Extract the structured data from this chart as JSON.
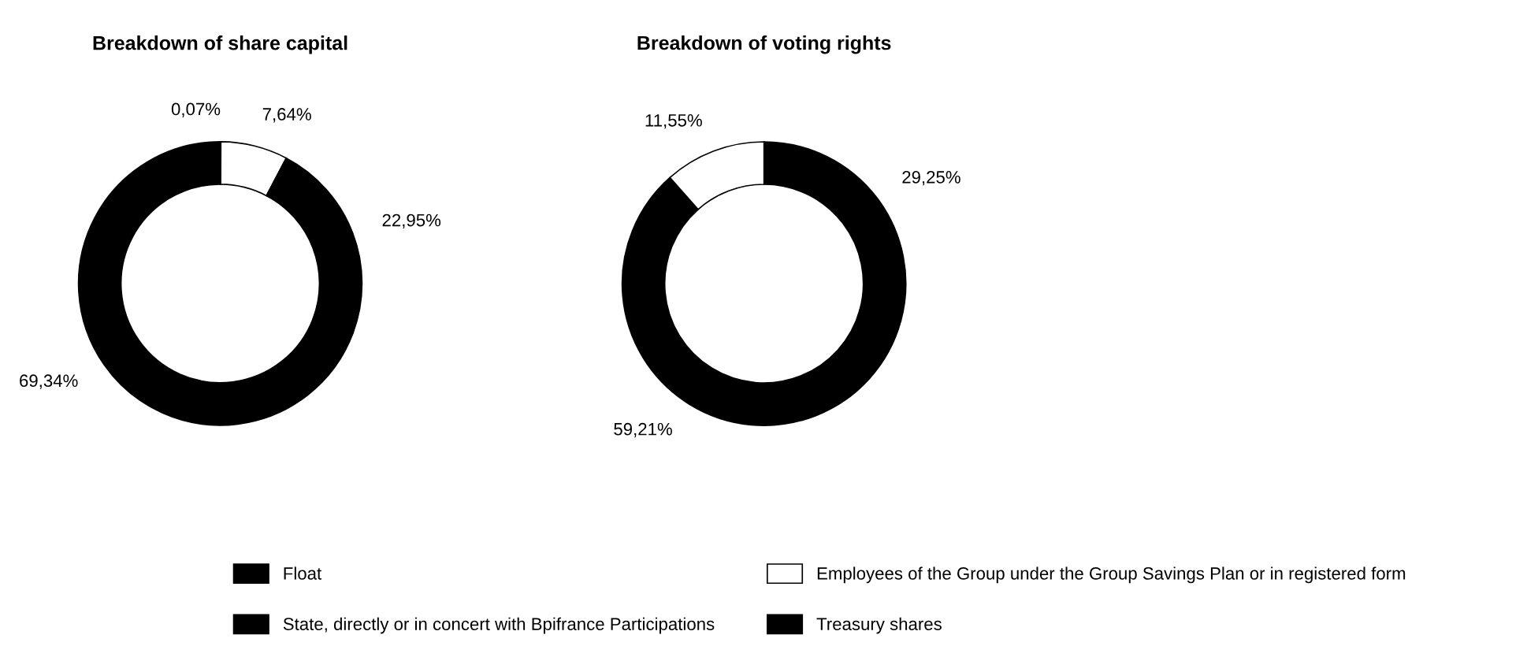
{
  "chart_data": [
    {
      "type": "donut",
      "title": "Breakdown of share capital",
      "categories": [
        "Treasury shares",
        "Employees of the Group under the Group Savings Plan or in registered form",
        "State, directly or in concert with Bpifrance Participations",
        "Float"
      ],
      "values": [
        0.07,
        7.64,
        22.95,
        69.34
      ],
      "value_labels": [
        "0,07%",
        "7,64%",
        "22,95%",
        "69,34%"
      ],
      "colors": [
        "#000000",
        "#ffffff",
        "#000000",
        "#000000"
      ],
      "legend": "bottom"
    },
    {
      "type": "donut",
      "title": "Breakdown of voting rights",
      "categories": [
        null,
        null,
        null
      ],
      "values": [
        29.25,
        59.21,
        11.55
      ],
      "value_labels": [
        "29,25%",
        "59,21%",
        "11,55%"
      ],
      "colors": [
        "#000000",
        "#000000",
        "#ffffff"
      ]
    }
  ]
}
